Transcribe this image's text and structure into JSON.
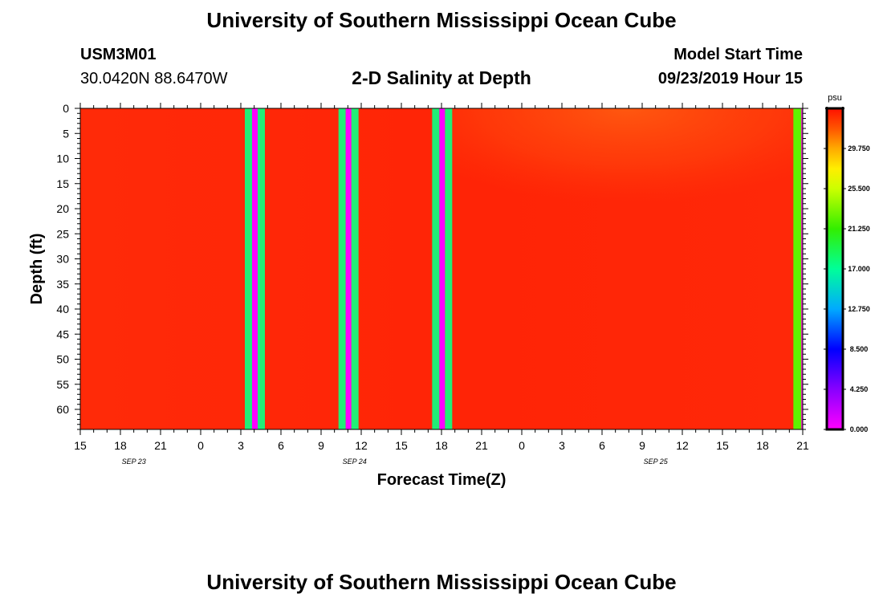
{
  "page": {
    "title_top": "University of Southern Mississippi Ocean Cube",
    "title_bottom": "University of Southern Mississippi Ocean Cube",
    "station_id": "USM3M01",
    "location": "30.0420N 88.6470W",
    "plot_title": "2-D Salinity at Depth",
    "model_label": "Model Start Time",
    "model_time": "09/23/2019 Hour 15"
  },
  "chart_data": {
    "type": "heatmap",
    "title": "2-D Salinity at Depth",
    "xlabel": "Forecast Time(Z)",
    "ylabel": "Depth (ft)",
    "x_range_hours": [
      0,
      54
    ],
    "y_range_ft": [
      0,
      64
    ],
    "y_ticks": [
      0,
      5,
      10,
      15,
      20,
      25,
      30,
      35,
      40,
      45,
      50,
      55,
      60
    ],
    "x_tick_labels": [
      "15",
      "18",
      "21",
      "0",
      "3",
      "6",
      "9",
      "12",
      "15",
      "18",
      "21",
      "0",
      "3",
      "6",
      "9",
      "12",
      "15",
      "18",
      "21"
    ],
    "date_labels": [
      {
        "text": "SEP 23",
        "hour": 4
      },
      {
        "text": "SEP 24",
        "hour": 20.5
      },
      {
        "text": "SEP 25",
        "hour": 43
      }
    ],
    "colorbar": {
      "unit": "psu",
      "min": 0.0,
      "max": 34.0,
      "tick_values": [
        0.0,
        4.25,
        8.5,
        12.75,
        17.0,
        21.25,
        25.5,
        29.75
      ],
      "tick_labels": [
        "0.000",
        "4.250",
        "8.500",
        "12.750",
        "17.000",
        "21.250",
        "25.500",
        "29.750"
      ]
    },
    "field_notes": "Salinity near 33-34 psu throughout; slightly fresher near the surface after Sep 24 21Z.",
    "missing_data_bands": [
      {
        "hour_start": 12.3,
        "hour_end": 13.8
      },
      {
        "hour_start": 19.3,
        "hour_end": 20.8
      },
      {
        "hour_start": 26.3,
        "hour_end": 27.8
      }
    ],
    "edge_band": {
      "hour_start": 53.3,
      "hour_end": 53.9,
      "salinity": 22.5
    }
  }
}
